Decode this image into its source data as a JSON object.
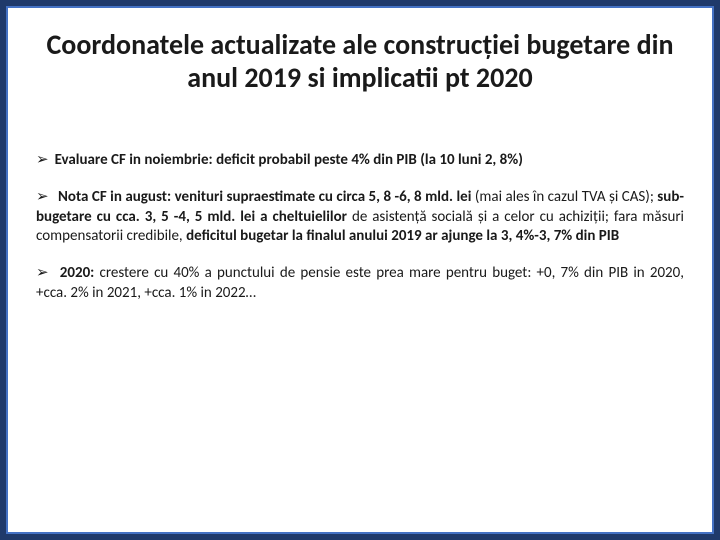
{
  "colors": {
    "outer_bg": "#1f3a6b",
    "inner_bg": "#ffffff",
    "inner_border": "#4472c4",
    "title_color": "#1a1a1a",
    "body_color": "#1a1a1a"
  },
  "title": "Coordonatele actualizate ale construcției bugetare din anul 2019 si implicatii pt 2020",
  "bullets": {
    "b1_bold": "Evaluare CF in noiembrie: deficit probabil peste 4% din PIB (la 10 luni 2, 8%)",
    "b2_lead_bold": " Nota CF in august: venituri supraestimate cu circa 5, 8 -6, 8 mld. lei ",
    "b2_mid_plain": "(mai ales în cazul TVA și CAS); ",
    "b2_sub_bold": "sub-bugetare cu cca.  3, 5 -4, 5 mld. lei a cheltuielilor ",
    "b2_mid2_plain": "de asistență socială și a celor cu achiziții; fara măsuri compensatorii credibile, ",
    "b2_end_bold": "deficitul bugetar la finalul anului 2019 ar ajunge la 3, 4%-3, 7% din PIB",
    "b3_bold": " 2020: ",
    "b3_plain": "crestere cu 40% a punctului de pensie este prea mare pentru buget: +0, 7% din PIB in 2020, +cca. 2% in 2021, +cca. 1% in 2022…"
  }
}
